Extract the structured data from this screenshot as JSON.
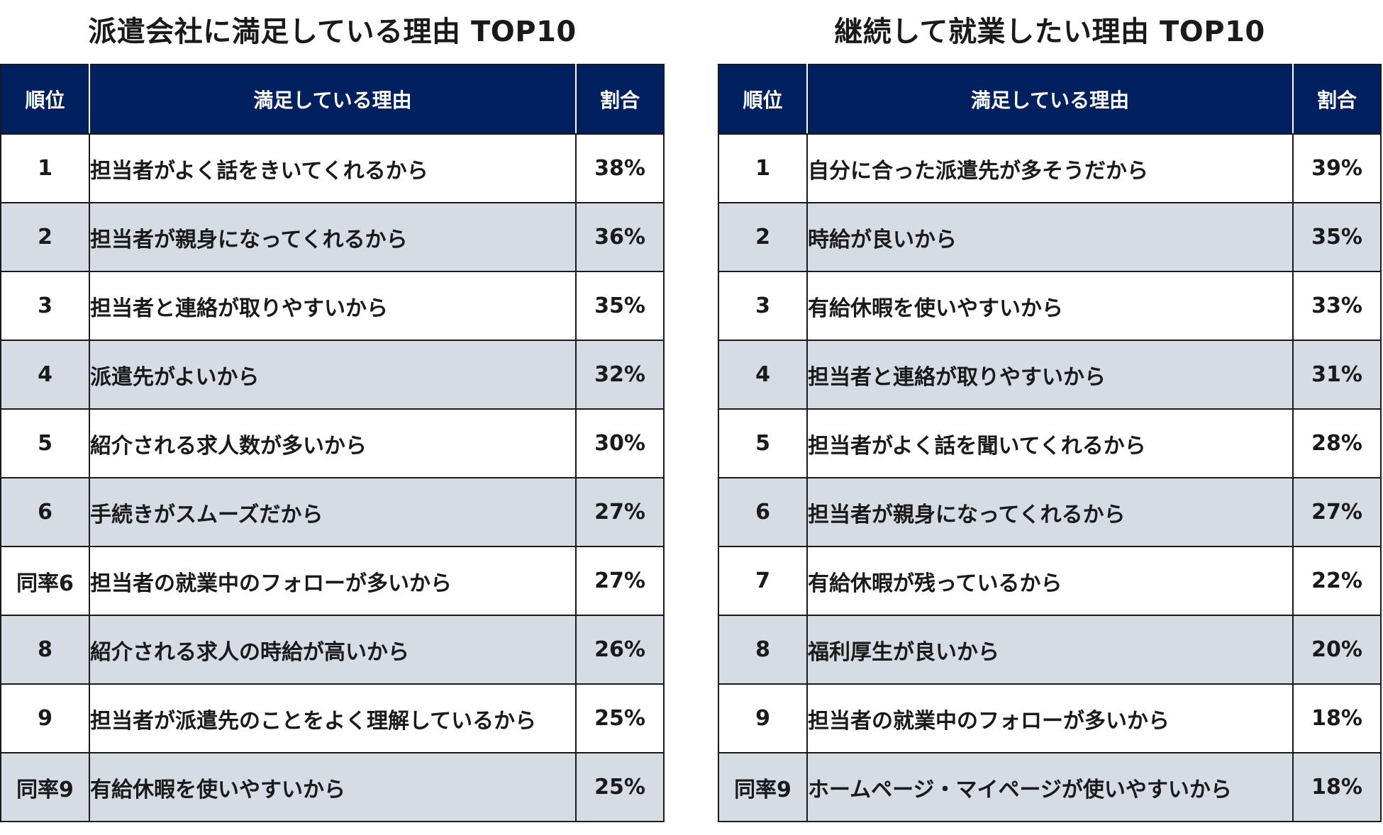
{
  "left": {
    "title": "派遣会社に満足している理由 TOP10",
    "headers": {
      "rank": "順位",
      "reason": "満足している理由",
      "pct": "割合"
    },
    "rows": [
      {
        "rank": "1",
        "reason": "担当者がよく話をきいてくれるから",
        "pct": "38%"
      },
      {
        "rank": "2",
        "reason": "担当者が親身になってくれるから",
        "pct": "36%"
      },
      {
        "rank": "3",
        "reason": "担当者と連絡が取りやすいから",
        "pct": "35%"
      },
      {
        "rank": "4",
        "reason": "派遣先がよいから",
        "pct": "32%"
      },
      {
        "rank": "5",
        "reason": "紹介される求人数が多いから",
        "pct": "30%"
      },
      {
        "rank": "6",
        "reason": "手続きがスムーズだから",
        "pct": "27%"
      },
      {
        "rank": "同率6",
        "reason": "担当者の就業中のフォローが多いから",
        "pct": "27%"
      },
      {
        "rank": "8",
        "reason": "紹介される求人の時給が高いから",
        "pct": "26%"
      },
      {
        "rank": "9",
        "reason": "担当者が派遣先のことをよく理解しているから",
        "pct": "25%"
      },
      {
        "rank": "同率9",
        "reason": "有給休暇を使いやすいから",
        "pct": "25%"
      }
    ]
  },
  "right": {
    "title": "継続して就業したい理由 TOP10",
    "headers": {
      "rank": "順位",
      "reason": "満足している理由",
      "pct": "割合"
    },
    "rows": [
      {
        "rank": "1",
        "reason": "自分に合った派遣先が多そうだから",
        "pct": "39%"
      },
      {
        "rank": "2",
        "reason": "時給が良いから",
        "pct": "35%"
      },
      {
        "rank": "3",
        "reason": "有給休暇を使いやすいから",
        "pct": "33%"
      },
      {
        "rank": "4",
        "reason": "担当者と連絡が取りやすいから",
        "pct": "31%"
      },
      {
        "rank": "5",
        "reason": "担当者がよく話を聞いてくれるから",
        "pct": "28%"
      },
      {
        "rank": "6",
        "reason": "担当者が親身になってくれるから",
        "pct": "27%"
      },
      {
        "rank": "7",
        "reason": "有給休暇が残っているから",
        "pct": "22%"
      },
      {
        "rank": "8",
        "reason": "福利厚生が良いから",
        "pct": "20%"
      },
      {
        "rank": "9",
        "reason": "担当者の就業中のフォローが多いから",
        "pct": "18%"
      },
      {
        "rank": "同率9",
        "reason": "ホームページ・マイページが使いやすいから",
        "pct": "18%"
      }
    ]
  },
  "colors": {
    "header_bg": "#002060",
    "header_text": "#ffffff",
    "stripe_bg": "#d6dce4",
    "row_bg": "#ffffff",
    "border": "#1a1a1a"
  }
}
